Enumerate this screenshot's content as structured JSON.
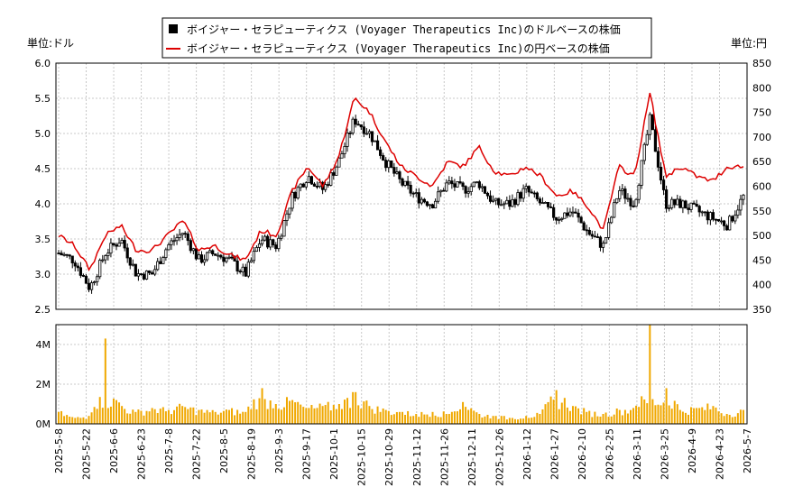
{
  "legend": {
    "usd_label": "ボイジャー・セラピューティクス (Voyager Therapeutics Inc)のドルベースの株価",
    "jpy_label": "ボイジャー・セラピューティクス (Voyager Therapeutics Inc)の円ベースの株価"
  },
  "units": {
    "left": "単位:ドル",
    "right": "単位:円"
  },
  "colors": {
    "usd": "#000000",
    "jpy": "#dd0000",
    "volume": "#f0a800",
    "grid": "#c8c8c8"
  },
  "chart_data": [
    {
      "type": "candlestick",
      "series_name": "ドルベースの株価",
      "ylim_left": [
        2.5,
        6.0
      ],
      "yticks_left": [
        "2.5",
        "3.0",
        "3.5",
        "4.0",
        "4.5",
        "5.0",
        "5.5",
        "6.0"
      ],
      "ylim_right": [
        350,
        850
      ],
      "yticks_right": [
        "350",
        "400",
        "450",
        "500",
        "550",
        "600",
        "650",
        "700",
        "750",
        "800",
        "850"
      ],
      "x_start": "2025-05-08",
      "x_end": "2026-05-07",
      "xticks": [
        "2025-5-8",
        "2025-5-22",
        "2025-6-6",
        "2025-6-23",
        "2025-7-8",
        "2025-7-22",
        "2025-8-5",
        "2025-8-19",
        "2025-9-3",
        "2025-9-17",
        "2025-10-1",
        "2025-10-15",
        "2025-10-29",
        "2025-11-12",
        "2025-11-26",
        "2025-12-11",
        "2025-12-26",
        "2026-1-12",
        "2026-1-27",
        "2026-2-10",
        "2026-2-25",
        "2026-3-11",
        "2026-3-25",
        "2026-4-9",
        "2026-4-23",
        "2026-5-7"
      ],
      "usd_close_weekly": [
        3.3,
        3.2,
        2.8,
        3.3,
        3.5,
        3.0,
        3.0,
        3.4,
        3.6,
        3.2,
        3.3,
        3.2,
        3.0,
        3.5,
        3.4,
        4.1,
        4.4,
        4.2,
        4.6,
        5.2,
        5.0,
        4.6,
        4.3,
        4.1,
        4.0,
        4.3,
        4.2,
        4.3,
        4.0,
        4.0,
        4.2,
        4.0,
        3.8,
        3.9,
        3.6,
        3.4,
        4.2,
        4.0,
        5.2,
        4.0,
        4.0,
        3.9,
        3.8,
        3.7,
        4.1
      ],
      "jpy_close_weekly": [
        500,
        480,
        430,
        500,
        520,
        470,
        470,
        500,
        530,
        470,
        480,
        460,
        450,
        510,
        500,
        590,
        640,
        600,
        660,
        780,
        750,
        690,
        640,
        620,
        600,
        650,
        640,
        680,
        630,
        620,
        640,
        620,
        580,
        590,
        560,
        510,
        640,
        620,
        790,
        620,
        640,
        620,
        610,
        640,
        640
      ]
    },
    {
      "type": "bar",
      "series_name": "出来高",
      "ylim": [
        0,
        5000000
      ],
      "yticks": [
        "0M",
        "2M",
        "4M"
      ],
      "volume_weekly_m": [
        0.6,
        0.3,
        0.4,
        4.3,
        0.9,
        0.6,
        0.8,
        0.7,
        0.9,
        0.7,
        0.6,
        0.7,
        0.6,
        1.8,
        1.0,
        1.2,
        0.8,
        0.9,
        1.0,
        1.6,
        0.9,
        0.7,
        0.6,
        0.5,
        0.6,
        0.5,
        1.1,
        0.5,
        0.4,
        0.3,
        0.4,
        0.5,
        1.7,
        0.9,
        0.6,
        0.5,
        0.7,
        0.8,
        5.0,
        1.8,
        0.7,
        0.8,
        0.9,
        0.5,
        0.7
      ]
    }
  ]
}
